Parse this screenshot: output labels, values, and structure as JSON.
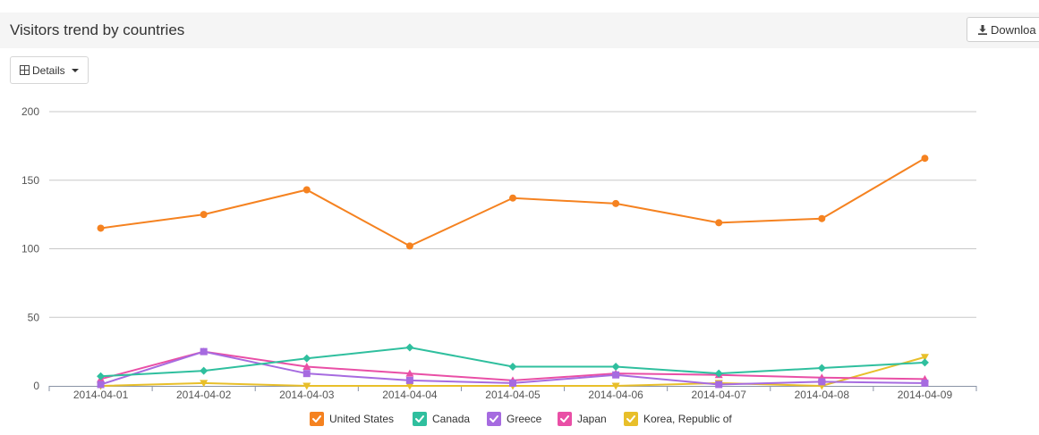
{
  "header": {
    "title": "Visitors trend by countries",
    "download_label": "Downloa"
  },
  "toolbar": {
    "details_label": "Details"
  },
  "chart_data": {
    "type": "line",
    "title": "",
    "xlabel": "",
    "ylabel": "",
    "ylim": [
      0,
      200
    ],
    "yticks": [
      0,
      50,
      100,
      150,
      200
    ],
    "grid": true,
    "legend": "bottom",
    "categories": [
      "2014-04-01",
      "2014-04-02",
      "2014-04-03",
      "2014-04-04",
      "2014-04-05",
      "2014-04-06",
      "2014-04-07",
      "2014-04-08",
      "2014-04-09"
    ],
    "series": [
      {
        "name": "United States",
        "color": "#f58220",
        "marker": "circle",
        "values": [
          115,
          125,
          143,
          102,
          137,
          133,
          119,
          122,
          166
        ]
      },
      {
        "name": "Canada",
        "color": "#2fbf9e",
        "marker": "diamond",
        "values": [
          7,
          11,
          20,
          28,
          14,
          14,
          9,
          13,
          17
        ]
      },
      {
        "name": "Greece",
        "color": "#a66be0",
        "marker": "square",
        "values": [
          1,
          25,
          9,
          4,
          2,
          8,
          1,
          3,
          2
        ]
      },
      {
        "name": "Japan",
        "color": "#e94fa6",
        "marker": "triangle",
        "values": [
          5,
          25,
          14,
          9,
          4,
          9,
          8,
          6,
          5
        ]
      },
      {
        "name": "Korea, Republic of",
        "color": "#e8bf2a",
        "marker": "triangle-down",
        "values": [
          0,
          2,
          0,
          0,
          0,
          0,
          2,
          0,
          21
        ]
      }
    ]
  }
}
